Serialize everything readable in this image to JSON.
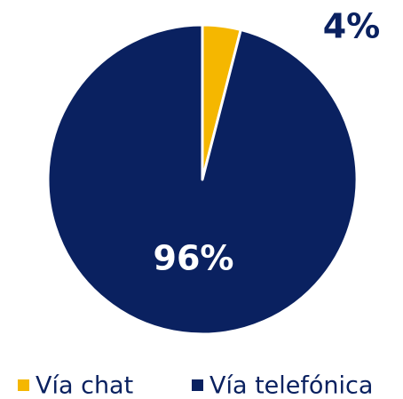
{
  "chart_data": {
    "type": "pie",
    "categories": [
      "Vía chat",
      "Vía telefónica"
    ],
    "values": [
      4,
      96
    ],
    "value_labels": [
      "4%",
      "96%"
    ],
    "colors": [
      "#f5b700",
      "#0a2160"
    ],
    "legend": "bottom"
  }
}
